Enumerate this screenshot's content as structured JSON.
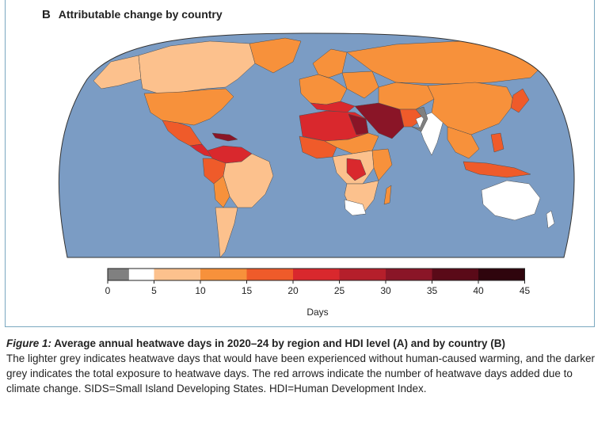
{
  "panel": {
    "letter": "B",
    "title": "Attributable change by country"
  },
  "map": {
    "ocean_color": "#7b9cc4",
    "border_color": "#4d4d4d",
    "land_colors": {
      "no_data": "#808080",
      "c0_5": "#ffffff",
      "c5_10": "#fcc18d",
      "c10_15": "#f7913b",
      "c15_20": "#ef5b2a",
      "c20_25": "#d9282d",
      "c25_30": "#b51f2b",
      "c30_35": "#8a1527",
      "c35_40": "#5a0a18",
      "c40_45": "#2f050d",
      "c45_plus": "#0d0205"
    }
  },
  "legend": {
    "title": "Days",
    "ticks": [
      "0",
      "5",
      "10",
      "15",
      "20",
      "25",
      "30",
      "35",
      "40",
      "45"
    ],
    "swatches": [
      "#808080",
      "#ffffff",
      "#fcc18d",
      "#f7913b",
      "#ef5b2a",
      "#d9282d",
      "#b51f2b",
      "#8a1527",
      "#5a0a18",
      "#2f050d",
      "#0d0205"
    ]
  },
  "caption": {
    "figure_label": "Figure 1:",
    "title": " Average annual heatwave days in 2020–24 by region and HDI level (A) and by country (B)",
    "body": "The lighter grey indicates heatwave days that would have been experienced without human-caused warming, and the darker grey indicates the total exposure to heatwave days. The red arrows indicate the number of heatwave days added due to climate change. SIDS=Small Island Developing States. HDI=Human Development Index."
  }
}
